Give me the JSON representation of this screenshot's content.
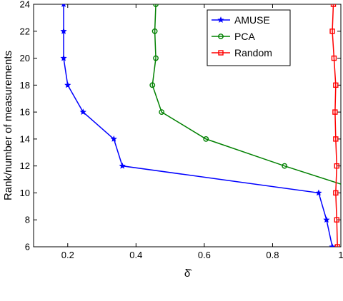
{
  "chart_data": {
    "type": "line",
    "title": "",
    "xlabel": "δ̂",
    "ylabel": "Rank/number of measurements",
    "xlim": [
      0.1,
      1.0
    ],
    "ylim": [
      6,
      24
    ],
    "xticks": [
      0.2,
      0.4,
      0.6,
      0.8,
      1
    ],
    "xtick_labels": [
      "0.2",
      "0.4",
      "0.6",
      "0.8",
      "1"
    ],
    "yticks": [
      6,
      8,
      10,
      12,
      14,
      16,
      18,
      20,
      22,
      24
    ],
    "ytick_labels": [
      "6",
      "8",
      "10",
      "12",
      "14",
      "16",
      "18",
      "20",
      "22",
      "24"
    ],
    "grid": false,
    "legend": "top-right",
    "series": [
      {
        "name": "AMUSE",
        "color": "#0000ff",
        "marker": "star",
        "x": [
          0.975,
          0.958,
          0.935,
          0.36,
          0.335,
          0.245,
          0.2,
          0.188,
          0.188,
          0.188
        ],
        "y": [
          6,
          8,
          10,
          12,
          14,
          16,
          18,
          20,
          22,
          24
        ]
      },
      {
        "name": "PCA",
        "color": "#008000",
        "marker": "circle",
        "x": [
          1.08,
          0.835,
          0.605,
          0.475,
          0.448,
          0.458,
          0.455,
          0.458
        ],
        "y": [
          10,
          12,
          14,
          16,
          18,
          20,
          22,
          24
        ]
      },
      {
        "name": "Random",
        "color": "#ff0000",
        "marker": "square",
        "x": [
          0.99,
          0.988,
          0.985,
          0.988,
          0.985,
          0.983,
          0.985,
          0.98,
          0.975,
          0.978
        ],
        "y": [
          6,
          8,
          10,
          12,
          14,
          16,
          18,
          20,
          22,
          24
        ]
      }
    ]
  }
}
